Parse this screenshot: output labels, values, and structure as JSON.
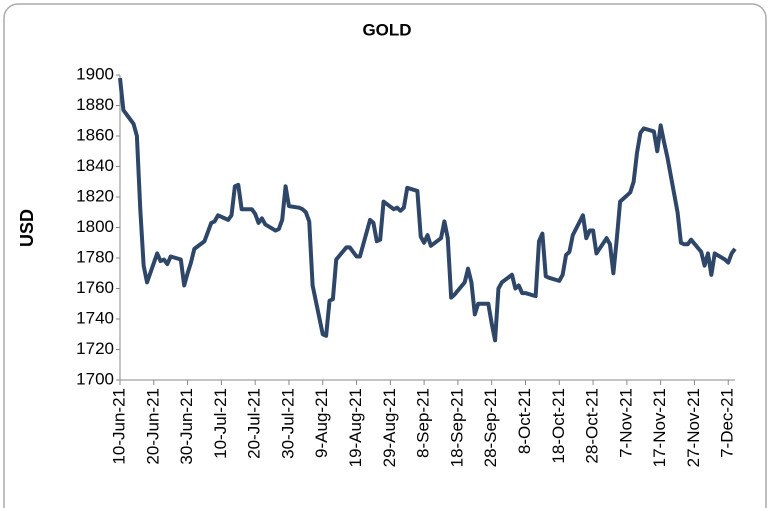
{
  "chart_data": {
    "type": "line",
    "title": "GOLD",
    "y_label": "USD",
    "x": [
      "2021-06-10",
      "2021-06-11",
      "2021-06-14",
      "2021-06-15",
      "2021-06-16",
      "2021-06-17",
      "2021-06-18",
      "2021-06-21",
      "2021-06-22",
      "2021-06-23",
      "2021-06-24",
      "2021-06-25",
      "2021-06-28",
      "2021-06-29",
      "2021-06-30",
      "2021-07-01",
      "2021-07-02",
      "2021-07-05",
      "2021-07-06",
      "2021-07-07",
      "2021-07-08",
      "2021-07-09",
      "2021-07-12",
      "2021-07-13",
      "2021-07-14",
      "2021-07-15",
      "2021-07-16",
      "2021-07-19",
      "2021-07-20",
      "2021-07-21",
      "2021-07-22",
      "2021-07-23",
      "2021-07-26",
      "2021-07-27",
      "2021-07-28",
      "2021-07-29",
      "2021-07-30",
      "2021-08-02",
      "2021-08-03",
      "2021-08-04",
      "2021-08-05",
      "2021-08-06",
      "2021-08-09",
      "2021-08-10",
      "2021-08-11",
      "2021-08-12",
      "2021-08-13",
      "2021-08-16",
      "2021-08-17",
      "2021-08-18",
      "2021-08-19",
      "2021-08-20",
      "2021-08-23",
      "2021-08-24",
      "2021-08-25",
      "2021-08-26",
      "2021-08-27",
      "2021-08-30",
      "2021-08-31",
      "2021-09-01",
      "2021-09-02",
      "2021-09-03",
      "2021-09-06",
      "2021-09-07",
      "2021-09-08",
      "2021-09-09",
      "2021-09-10",
      "2021-09-13",
      "2021-09-14",
      "2021-09-15",
      "2021-09-16",
      "2021-09-17",
      "2021-09-20",
      "2021-09-21",
      "2021-09-22",
      "2021-09-23",
      "2021-09-24",
      "2021-09-27",
      "2021-09-28",
      "2021-09-29",
      "2021-09-30",
      "2021-10-01",
      "2021-10-04",
      "2021-10-05",
      "2021-10-06",
      "2021-10-07",
      "2021-10-08",
      "2021-10-11",
      "2021-10-12",
      "2021-10-13",
      "2021-10-14",
      "2021-10-15",
      "2021-10-18",
      "2021-10-19",
      "2021-10-20",
      "2021-10-21",
      "2021-10-22",
      "2021-10-25",
      "2021-10-26",
      "2021-10-27",
      "2021-10-28",
      "2021-10-29",
      "2021-11-01",
      "2021-11-02",
      "2021-11-03",
      "2021-11-04",
      "2021-11-05",
      "2021-11-08",
      "2021-11-09",
      "2021-11-10",
      "2021-11-11",
      "2021-11-12",
      "2021-11-15",
      "2021-11-16",
      "2021-11-17",
      "2021-11-18",
      "2021-11-19",
      "2021-11-22",
      "2021-11-23",
      "2021-11-24",
      "2021-11-25",
      "2021-11-26",
      "2021-11-29",
      "2021-11-30",
      "2021-12-01",
      "2021-12-02",
      "2021-12-03",
      "2021-12-06",
      "2021-12-07",
      "2021-12-08",
      "2021-12-09"
    ],
    "series": [
      {
        "color": "#2e4668",
        "values": [
          1898,
          1877,
          1868,
          1860,
          1812,
          1775,
          1764,
          1783,
          1778,
          1779,
          1776,
          1781,
          1779,
          1762,
          1770,
          1777,
          1786,
          1791,
          1797,
          1803,
          1804,
          1808,
          1805,
          1808,
          1827,
          1828,
          1812,
          1812,
          1809,
          1803,
          1806,
          1802,
          1798,
          1799,
          1805,
          1827,
          1814,
          1813,
          1812,
          1810,
          1804,
          1762,
          1730,
          1729,
          1752,
          1753,
          1779,
          1787,
          1787,
          1784,
          1781,
          1781,
          1805,
          1803,
          1791,
          1792,
          1817,
          1812,
          1813,
          1811,
          1813,
          1826,
          1824,
          1794,
          1790,
          1795,
          1788,
          1793,
          1804,
          1793,
          1754,
          1756,
          1764,
          1773,
          1764,
          1743,
          1750,
          1750,
          1737,
          1726,
          1760,
          1764,
          1769,
          1760,
          1762,
          1757,
          1757,
          1755,
          1791,
          1796,
          1768,
          1767,
          1765,
          1769,
          1782,
          1784,
          1795,
          1808,
          1793,
          1798,
          1798,
          1783,
          1793,
          1789,
          1770,
          1792,
          1817,
          1823,
          1830,
          1849,
          1862,
          1865,
          1863,
          1850,
          1867,
          1856,
          1846,
          1810,
          1790,
          1789,
          1789,
          1792,
          1784,
          1775,
          1783,
          1769,
          1783,
          1779,
          1777,
          1783,
          1786
        ]
      }
    ],
    "xlim": [
      "2021-06-10",
      "2021-12-09"
    ],
    "xticks": [
      {
        "value": "2021-06-10",
        "label": "10-Jun-21"
      },
      {
        "value": "2021-06-20",
        "label": "20-Jun-21"
      },
      {
        "value": "2021-06-30",
        "label": "30-Jun-21"
      },
      {
        "value": "2021-07-10",
        "label": "10-Jul-21"
      },
      {
        "value": "2021-07-20",
        "label": "20-Jul-21"
      },
      {
        "value": "2021-07-30",
        "label": "30-Jul-21"
      },
      {
        "value": "2021-08-09",
        "label": "9-Aug-21"
      },
      {
        "value": "2021-08-19",
        "label": "19-Aug-21"
      },
      {
        "value": "2021-08-29",
        "label": "29-Aug-21"
      },
      {
        "value": "2021-09-08",
        "label": "8-Sep-21"
      },
      {
        "value": "2021-09-18",
        "label": "18-Sep-21"
      },
      {
        "value": "2021-09-28",
        "label": "28-Sep-21"
      },
      {
        "value": "2021-10-08",
        "label": "8-Oct-21"
      },
      {
        "value": "2021-10-18",
        "label": "18-Oct-21"
      },
      {
        "value": "2021-10-28",
        "label": "28-Oct-21"
      },
      {
        "value": "2021-11-07",
        "label": "7-Nov-21"
      },
      {
        "value": "2021-11-17",
        "label": "17-Nov-21"
      },
      {
        "value": "2021-11-27",
        "label": "27-Nov-21"
      },
      {
        "value": "2021-12-07",
        "label": "7-Dec-21"
      }
    ],
    "ylim": [
      1700,
      1900
    ],
    "yticks": [
      1700,
      1720,
      1740,
      1760,
      1780,
      1800,
      1820,
      1840,
      1860,
      1880,
      1900
    ],
    "grid": false
  }
}
